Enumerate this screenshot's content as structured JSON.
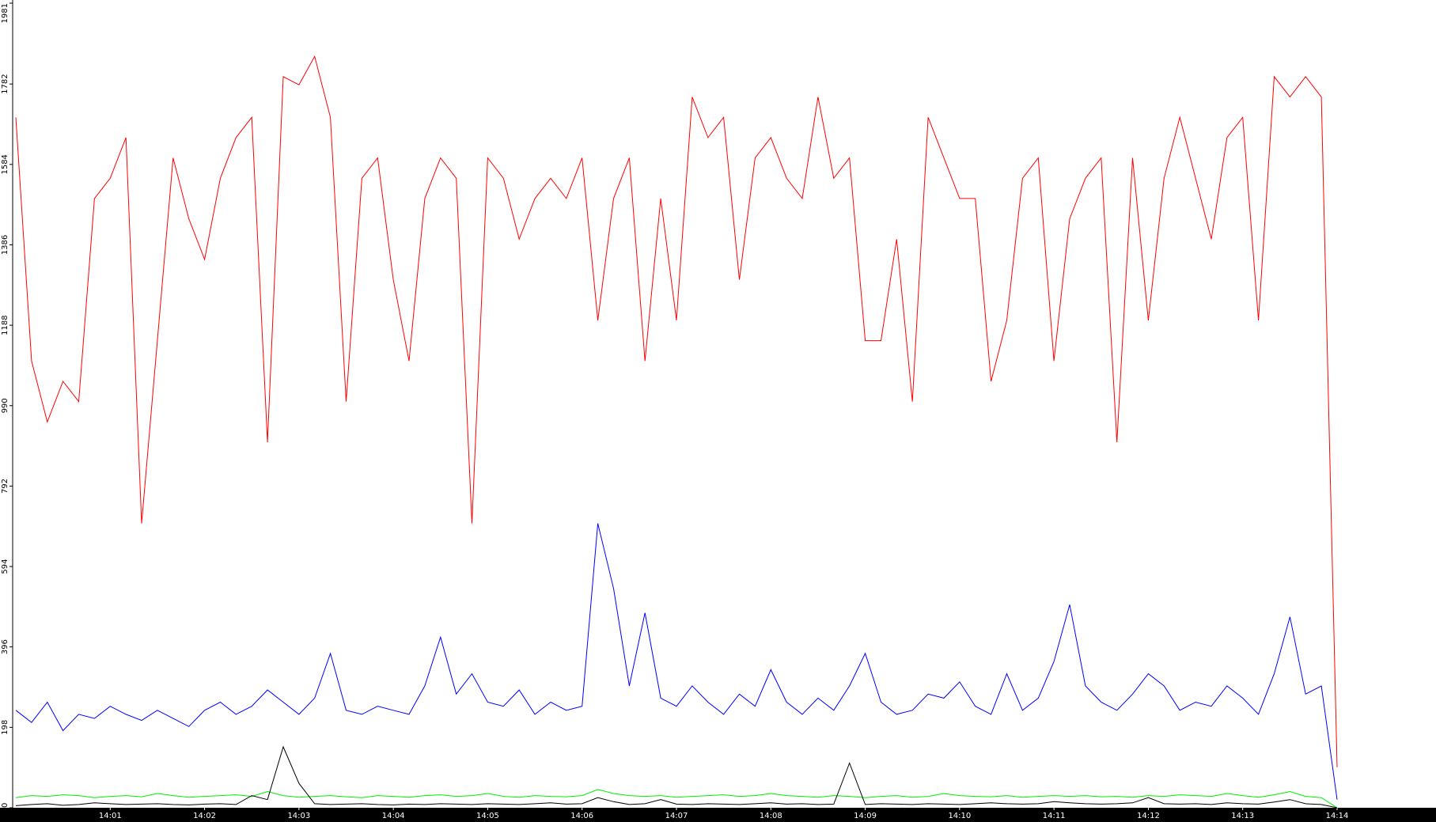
{
  "chart_data": {
    "type": "line",
    "categories": [
      null,
      null,
      null,
      null,
      null,
      null,
      "14:01",
      null,
      null,
      null,
      null,
      null,
      "14:02",
      null,
      null,
      null,
      null,
      null,
      "14:03",
      null,
      null,
      null,
      null,
      null,
      "14:04",
      null,
      null,
      null,
      null,
      null,
      "14:05",
      null,
      null,
      null,
      null,
      null,
      "14:06",
      null,
      null,
      null,
      null,
      null,
      "14:07",
      null,
      null,
      null,
      null,
      null,
      "14:08",
      null,
      null,
      null,
      null,
      null,
      "14:09",
      null,
      null,
      null,
      null,
      null,
      "14:10",
      null,
      null,
      null,
      null,
      null,
      "14:11",
      null,
      null,
      null,
      null,
      null,
      "14:12",
      null,
      null,
      null,
      null,
      null,
      "14:13",
      null,
      null,
      null,
      null,
      null,
      "14:14"
    ],
    "series": [
      {
        "color": "#ff0000",
        "values": [
          1700,
          1100,
          950,
          1050,
          1000,
          1500,
          1550,
          1650,
          700,
          1150,
          1600,
          1450,
          1350,
          1550,
          1650,
          1700,
          900,
          1800,
          1780,
          1850,
          1700,
          1000,
          1550,
          1600,
          1300,
          1100,
          1500,
          1600,
          1550,
          700,
          1600,
          1550,
          1400,
          1500,
          1550,
          1500,
          1600,
          1200,
          1500,
          1600,
          1100,
          1500,
          1200,
          1750,
          1650,
          1700,
          1300,
          1600,
          1650,
          1550,
          1500,
          1750,
          1550,
          1600,
          1150,
          1150,
          1400,
          1000,
          1700,
          1600,
          1500,
          1500,
          1050,
          1200,
          1550,
          1600,
          1100,
          1450,
          1550,
          1600,
          900,
          1600,
          1200,
          1550,
          1700,
          1550,
          1400,
          1650,
          1700,
          1200,
          1800,
          1750,
          1800,
          1750,
          100
        ]
      },
      {
        "color": "#0000ff",
        "values": [
          240,
          210,
          260,
          190,
          230,
          220,
          250,
          230,
          215,
          240,
          220,
          200,
          240,
          260,
          230,
          250,
          290,
          260,
          230,
          270,
          380,
          240,
          230,
          250,
          240,
          230,
          300,
          420,
          280,
          330,
          260,
          250,
          290,
          230,
          260,
          240,
          250,
          700,
          540,
          300,
          480,
          270,
          250,
          300,
          260,
          230,
          280,
          250,
          340,
          260,
          230,
          270,
          240,
          300,
          380,
          260,
          230,
          240,
          280,
          270,
          310,
          250,
          230,
          330,
          240,
          270,
          360,
          500,
          300,
          260,
          240,
          280,
          330,
          300,
          240,
          260,
          250,
          300,
          270,
          230,
          330,
          470,
          280,
          300,
          20
        ]
      },
      {
        "color": "#00ee00",
        "values": [
          25,
          30,
          28,
          32,
          30,
          25,
          28,
          30,
          27,
          35,
          30,
          26,
          28,
          30,
          32,
          28,
          40,
          30,
          26,
          28,
          30,
          27,
          25,
          30,
          28,
          26,
          30,
          32,
          28,
          30,
          35,
          28,
          26,
          30,
          28,
          27,
          30,
          45,
          35,
          30,
          28,
          30,
          26,
          28,
          30,
          32,
          28,
          30,
          35,
          30,
          28,
          26,
          30,
          28,
          25,
          28,
          30,
          26,
          28,
          35,
          30,
          28,
          27,
          30,
          26,
          28,
          30,
          28,
          30,
          27,
          28,
          26,
          30,
          28,
          32,
          30,
          28,
          35,
          30,
          26,
          32,
          40,
          28,
          25,
          0
        ]
      },
      {
        "color": "#000000",
        "values": [
          5,
          8,
          10,
          6,
          8,
          12,
          10,
          8,
          9,
          10,
          8,
          7,
          9,
          10,
          8,
          30,
          20,
          150,
          60,
          10,
          8,
          9,
          10,
          8,
          7,
          9,
          8,
          10,
          9,
          8,
          10,
          9,
          8,
          10,
          12,
          9,
          10,
          25,
          15,
          8,
          10,
          20,
          9,
          8,
          10,
          9,
          8,
          10,
          12,
          9,
          10,
          8,
          9,
          110,
          8,
          10,
          9,
          8,
          10,
          9,
          8,
          10,
          12,
          10,
          9,
          10,
          15,
          12,
          10,
          9,
          10,
          12,
          25,
          10,
          9,
          10,
          8,
          12,
          10,
          9,
          14,
          20,
          10,
          8,
          0
        ]
      }
    ],
    "ylim": [
      0,
      1981
    ],
    "yticks": [
      0,
      198,
      396,
      594,
      792,
      990,
      1188,
      1386,
      1584,
      1782,
      1981
    ]
  }
}
